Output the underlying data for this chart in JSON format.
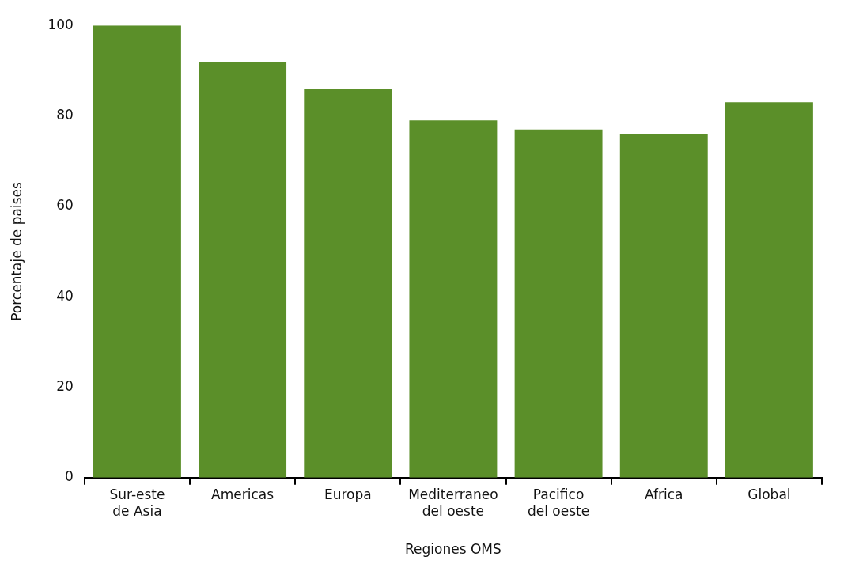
{
  "chart_data": {
    "type": "bar",
    "xlabel": "Regiones OMS",
    "ylabel": "Porcentaje de paises",
    "categories": [
      "Sur-este de Asia",
      "Americas",
      "Europa",
      "Mediterraneo del oeste",
      "Pacifico del oeste",
      "Africa",
      "Global"
    ],
    "values": [
      100,
      92,
      86,
      79,
      77,
      76,
      83
    ],
    "color": "#5b8f29",
    "ylim": [
      0,
      100
    ],
    "yticks": [
      0,
      20,
      40,
      60,
      80,
      100
    ],
    "grid": false,
    "legend": false
  }
}
